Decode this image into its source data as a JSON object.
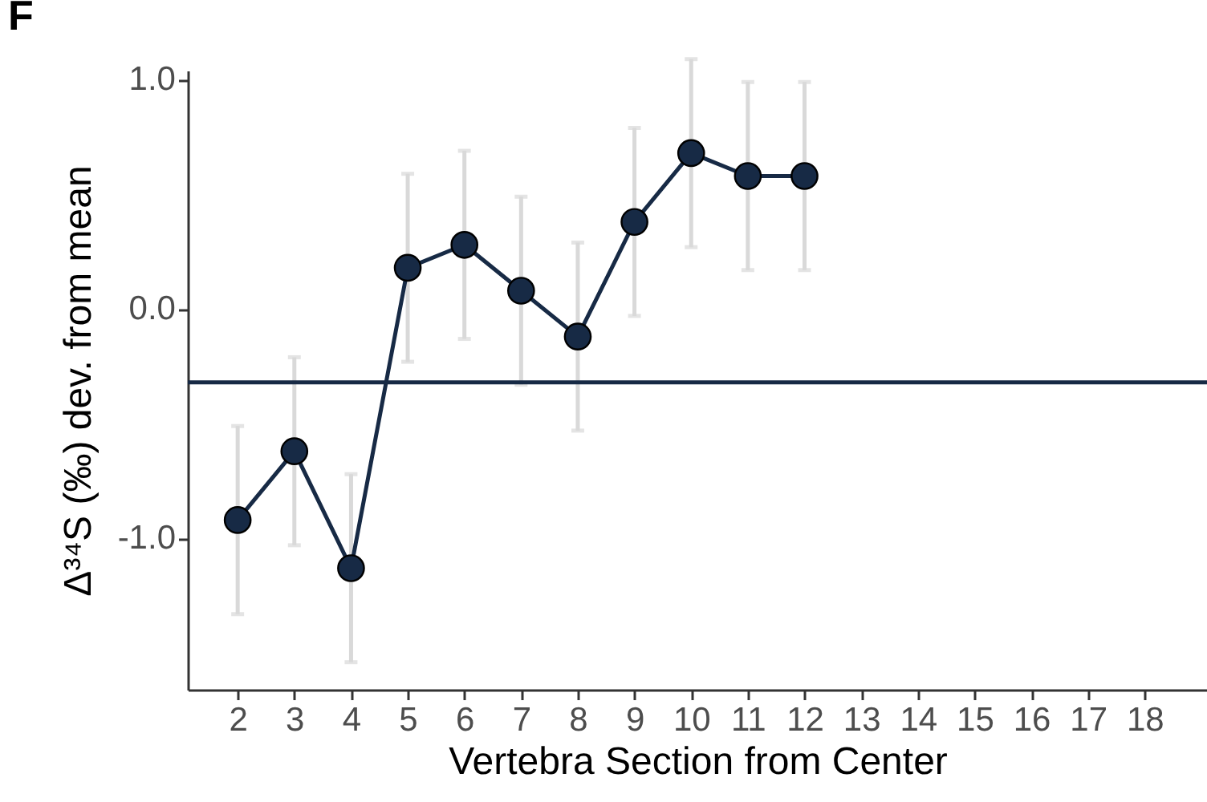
{
  "chart_data": {
    "type": "line",
    "ylabel": "Δ³⁴S (‰) dev. from mean",
    "xlabel": "Vertebra Section from Center",
    "annotations": [
      "F"
    ],
    "x": [
      2,
      3,
      4,
      5,
      6,
      7,
      8,
      9,
      10,
      11,
      12
    ],
    "series": [
      {
        "color": "#172a45",
        "values": [
          -0.92,
          -0.62,
          -1.13,
          0.18,
          0.28,
          0.08,
          -0.12,
          0.38,
          0.68,
          0.58,
          0.58
        ],
        "errors": [
          0.41,
          0.41,
          0.41,
          0.41,
          0.41,
          0.41,
          0.41,
          0.41,
          0.41,
          0.41,
          0.41
        ]
      }
    ],
    "xlim": [
      1.12,
      19.1
    ],
    "xticks": [
      2,
      3,
      4,
      5,
      6,
      7,
      8,
      9,
      10,
      11,
      12,
      13,
      14,
      15,
      16,
      17,
      18
    ],
    "ylim": [
      -1.66,
      1.04
    ],
    "yticks": [
      {
        "value": -1,
        "label": "-1.0"
      },
      {
        "value": 0,
        "label": "0.0"
      },
      {
        "value": 1,
        "label": "1.0"
      }
    ],
    "ref_lines": [
      {
        "axis": "y",
        "value": -0.32,
        "color": "#172a45"
      }
    ],
    "marker": "circle",
    "grid": false
  }
}
